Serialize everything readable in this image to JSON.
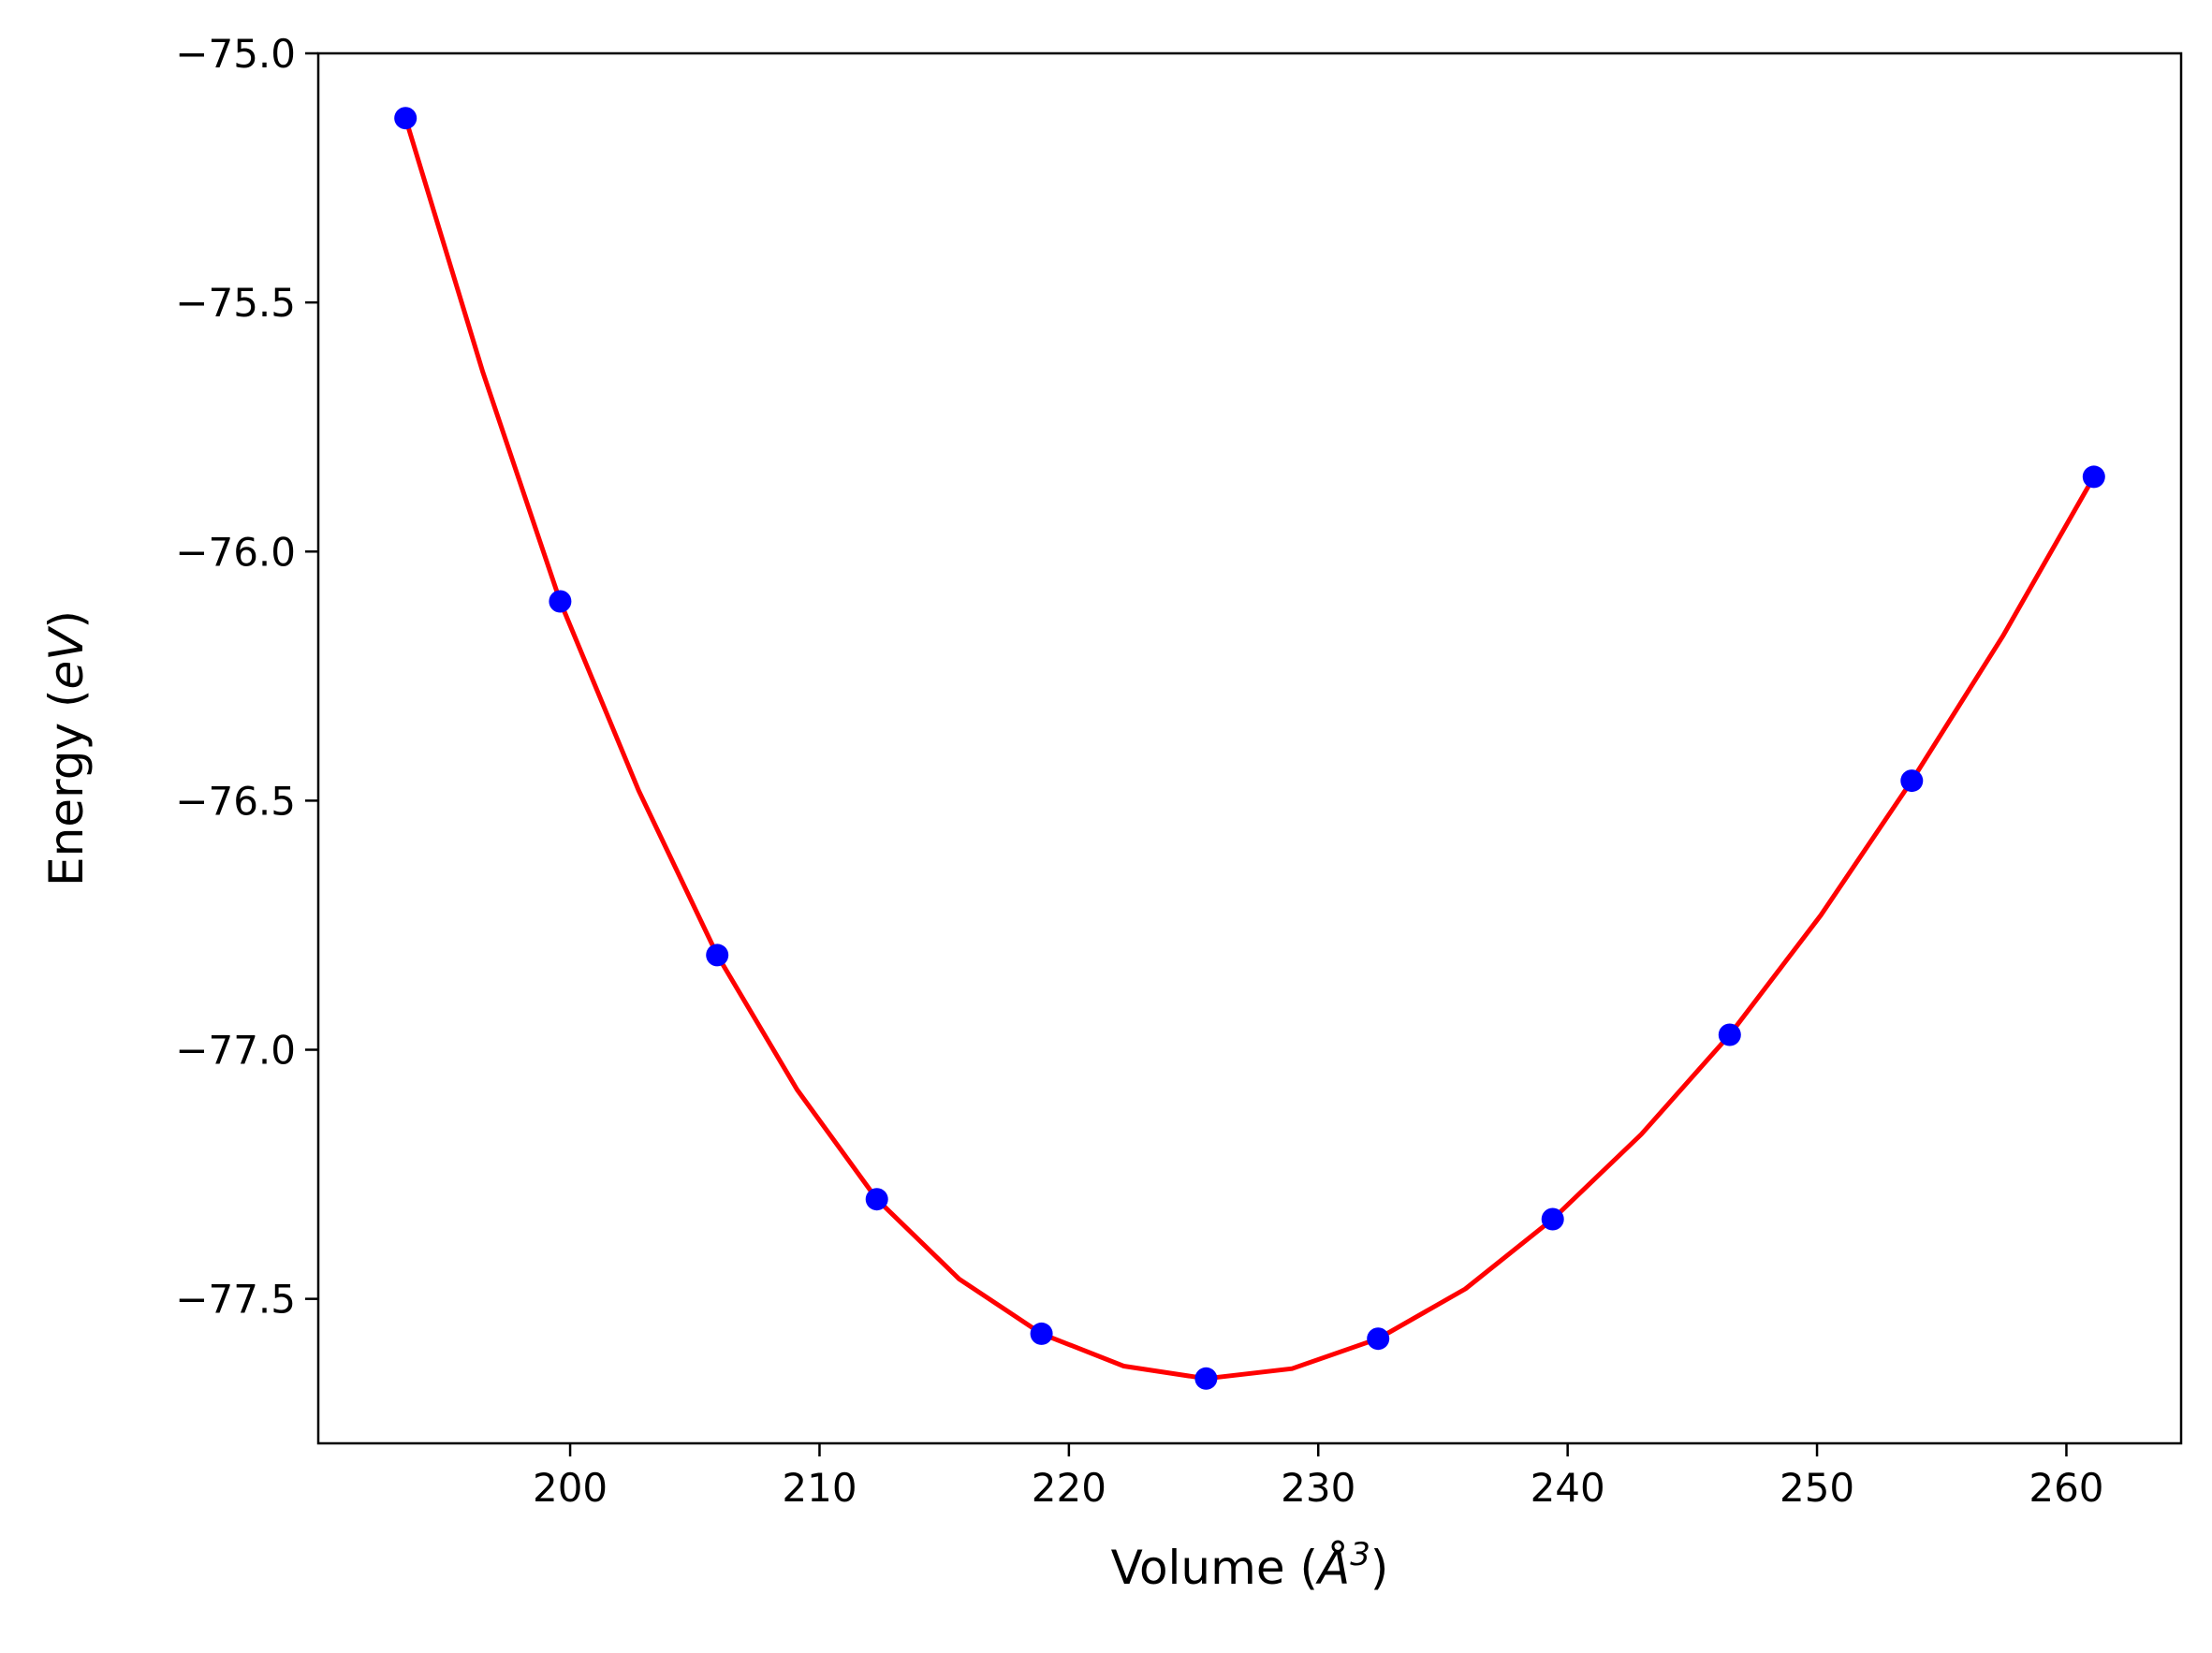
{
  "chart_data": {
    "type": "scatter",
    "title": "",
    "xlabel": "Volume (Å³)",
    "xlabel_parts": {
      "prefix": "Volume (",
      "symbol": "Å",
      "sup": "3",
      "suffix": ")"
    },
    "ylabel": "Energy (eV)",
    "ylabel_parts": {
      "prefix": "Energy (",
      "symbol": "eV",
      "suffix": ")"
    },
    "xlim": [
      189.9,
      264.6
    ],
    "ylim": [
      -77.79,
      -75.0
    ],
    "xticks": [
      200,
      210,
      220,
      230,
      240,
      250,
      260
    ],
    "xtick_labels": [
      "200",
      "210",
      "220",
      "230",
      "240",
      "250",
      "260"
    ],
    "yticks": [
      -75.0,
      -75.5,
      -76.0,
      -76.5,
      -77.0,
      -77.5
    ],
    "ytick_labels": [
      "−75.0",
      "−75.5",
      "−76.0",
      "−76.5",
      "−77.0",
      "−77.5"
    ],
    "grid": false,
    "series": [
      {
        "kind": "points",
        "color": "#0000ff",
        "x": [
          193.4,
          199.6,
          205.9,
          212.3,
          218.9,
          225.5,
          232.4,
          239.4,
          246.5,
          253.8,
          261.1
        ],
        "y": [
          -75.13,
          -76.1,
          -76.81,
          -77.3,
          -77.57,
          -77.66,
          -77.58,
          -77.34,
          -76.97,
          -76.46,
          -75.85
        ]
      },
      {
        "kind": "fit-curve",
        "color": "#ff0000",
        "x": [
          193.4,
          196.5,
          199.6,
          202.75,
          205.9,
          209.1,
          212.3,
          215.6,
          218.9,
          222.2,
          225.5,
          228.95,
          232.4,
          235.9,
          239.4,
          242.95,
          246.5,
          250.15,
          253.8,
          257.45,
          261.1
        ],
        "y": [
          -75.13,
          -75.64,
          -76.1,
          -76.48,
          -76.81,
          -77.08,
          -77.3,
          -77.46,
          -77.57,
          -77.635,
          -77.66,
          -77.64,
          -77.58,
          -77.48,
          -77.34,
          -77.17,
          -76.97,
          -76.73,
          -76.46,
          -76.17,
          -75.85
        ]
      }
    ]
  }
}
